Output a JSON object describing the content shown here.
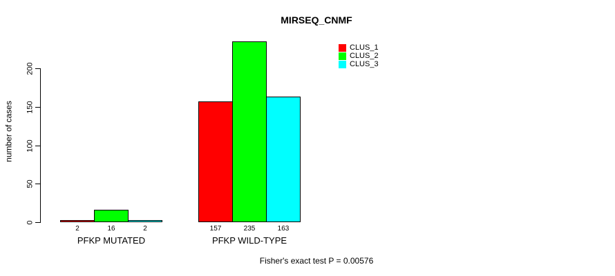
{
  "title": "MIRSEQ_CNMF",
  "footer": "Fisher's exact test P = 0.00576",
  "chart_data": {
    "type": "bar",
    "title": "MIRSEQ_CNMF",
    "xlabel": "",
    "ylabel": "number of cases",
    "categories": [
      "PFKP MUTATED",
      "PFKP WILD-TYPE"
    ],
    "series": [
      {
        "name": "CLUS_1",
        "color": "#ff0000",
        "values": [
          2,
          157
        ]
      },
      {
        "name": "CLUS_2",
        "color": "#00ff00",
        "values": [
          16,
          235
        ]
      },
      {
        "name": "CLUS_3",
        "color": "#00ffff",
        "values": [
          2,
          163
        ]
      }
    ],
    "bar_value_labels": [
      [
        "2",
        "16",
        "2"
      ],
      [
        "157",
        "235",
        "163"
      ]
    ],
    "yticks": [
      0,
      50,
      100,
      150,
      200
    ],
    "ylim": [
      0,
      237
    ],
    "grid": false,
    "legend_position": "top-right",
    "annotation": "Fisher's exact test P = 0.00576",
    "colors": {
      "CLUS_1": "#ff0000",
      "CLUS_2": "#00ff00",
      "CLUS_3": "#00ffff",
      "axis": "#000000",
      "background": "#ffffff"
    }
  }
}
